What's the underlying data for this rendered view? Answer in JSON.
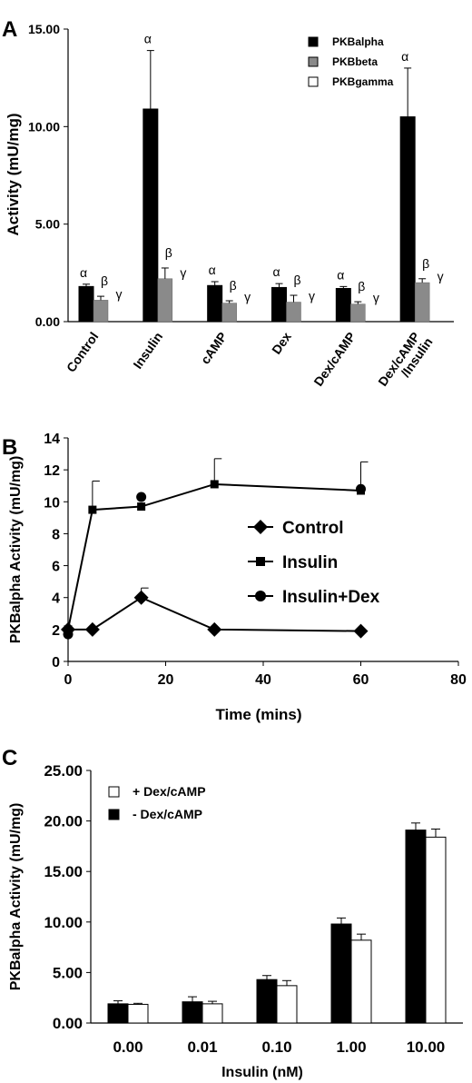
{
  "panels": [
    {
      "letter": "A"
    },
    {
      "letter": "B"
    },
    {
      "letter": "C"
    }
  ],
  "chart_data": [
    {
      "type": "bar",
      "panel": "A",
      "ylabel": "Activity (mU/mg)",
      "xlabel": "",
      "ylim": [
        0,
        15
      ],
      "yticks": [
        "0.00",
        "5.00",
        "10.00",
        "15.00"
      ],
      "categories": [
        "Control",
        "Insulin",
        "cAMP",
        "Dex",
        "Dex/cAMP",
        "Dex/cAMP\n/Insulin"
      ],
      "series": [
        {
          "name": "PKBalpha",
          "symbol": "α",
          "color": "#000000",
          "values": [
            1.8,
            10.9,
            1.85,
            1.75,
            1.7,
            10.5
          ],
          "errors": [
            0.12,
            3.0,
            0.2,
            0.2,
            0.1,
            2.5
          ]
        },
        {
          "name": "PKBbeta",
          "symbol": "β",
          "color": "#8a8a8a",
          "values": [
            1.1,
            2.2,
            0.95,
            1.0,
            0.9,
            2.0
          ],
          "errors": [
            0.2,
            0.55,
            0.12,
            0.35,
            0.12,
            0.2
          ]
        },
        {
          "name": "PKBgamma",
          "symbol": "γ",
          "color": "#ffffff",
          "values": [
            0,
            0,
            0,
            0,
            0,
            0
          ],
          "errors": [
            0,
            0,
            0,
            0,
            0,
            0
          ]
        }
      ],
      "legend": "top-right",
      "grid": false
    },
    {
      "type": "line",
      "panel": "B",
      "ylabel": "PKBalpha Activity (mU/mg)",
      "xlabel": "Time (mins)",
      "xlim": [
        0,
        80
      ],
      "ylim": [
        0,
        14
      ],
      "xticks": [
        "0",
        "20",
        "40",
        "60",
        "80"
      ],
      "yticks": [
        "0",
        "2",
        "4",
        "6",
        "8",
        "10",
        "12",
        "14"
      ],
      "series": [
        {
          "name": "Control",
          "marker": "diamond",
          "x": [
            0,
            5,
            15,
            30,
            60
          ],
          "y": [
            2.0,
            2.0,
            4.0,
            2.0,
            1.9
          ],
          "errors": [
            0,
            0,
            0.6,
            0,
            0
          ],
          "connected": true
        },
        {
          "name": "Insulin",
          "marker": "square",
          "x": [
            0,
            5,
            15,
            30,
            60
          ],
          "y": [
            2.0,
            9.5,
            9.7,
            11.1,
            10.7
          ],
          "errors": [
            0,
            1.8,
            0,
            1.6,
            1.8
          ],
          "connected": true
        },
        {
          "name": "Insulin+Dex",
          "marker": "circle",
          "x": [
            0,
            15,
            60
          ],
          "y": [
            1.7,
            10.3,
            10.8
          ],
          "errors": [
            0,
            0,
            0
          ],
          "connected": false
        }
      ],
      "legend": "right",
      "grid": false
    },
    {
      "type": "bar",
      "panel": "C",
      "ylabel": "PKBalpha Activity (mU/mg)",
      "xlabel": "Insulin (nM)",
      "ylim": [
        0,
        25
      ],
      "yticks": [
        "0.00",
        "5.00",
        "10.00",
        "15.00",
        "20.00",
        "25.00"
      ],
      "categories": [
        "0.00",
        "0.01",
        "0.10",
        "1.00",
        "10.00"
      ],
      "series": [
        {
          "name": "- Dex/cAMP",
          "color": "#000000",
          "values": [
            1.9,
            2.1,
            4.3,
            9.8,
            19.1
          ],
          "errors": [
            0.3,
            0.5,
            0.4,
            0.6,
            0.7
          ]
        },
        {
          "name": "+ Dex/cAMP",
          "color": "#ffffff",
          "values": [
            1.85,
            1.9,
            3.7,
            8.2,
            18.4
          ],
          "errors": [
            0.1,
            0.25,
            0.5,
            0.6,
            0.8
          ]
        }
      ],
      "legend_order": [
        "+ Dex/cAMP",
        "- Dex/cAMP"
      ],
      "legend": "top-left",
      "grid": false
    }
  ]
}
